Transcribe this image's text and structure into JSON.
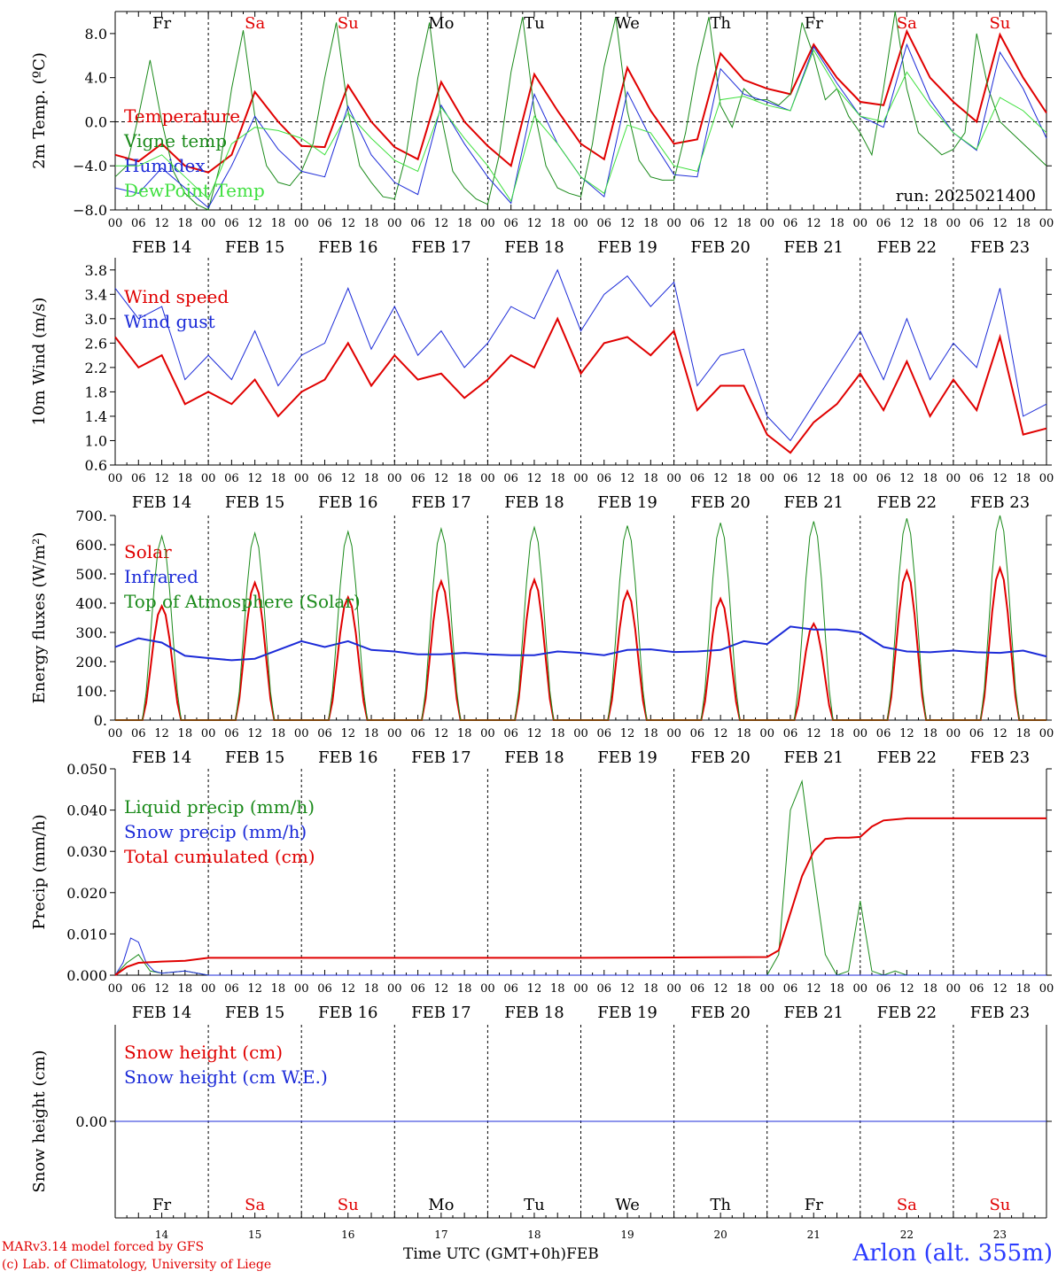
{
  "credits": {
    "model": "MARv3.14 model forced by GFS",
    "lab": "(c) Lab. of Climatology, University of Liege"
  },
  "x_axis": {
    "title": "Time UTC (GMT+0h)",
    "month": "FEB",
    "hour_ticks": [
      "00",
      "06",
      "12",
      "18"
    ],
    "date_labels": [
      "FEB 14",
      "FEB 15",
      "FEB 16",
      "FEB 17",
      "FEB 18",
      "FEB 19",
      "FEB 20",
      "FEB 21",
      "FEB 22",
      "FEB 23"
    ],
    "weekdays": [
      "Fr",
      "Sa",
      "Su",
      "Mo",
      "Tu",
      "We",
      "Th",
      "Fr",
      "Sa",
      "Su"
    ],
    "weekday_colors": [
      "#000000",
      "#e00000",
      "#e00000",
      "#000000",
      "#000000",
      "#000000",
      "#000000",
      "#000000",
      "#e00000",
      "#e00000"
    ],
    "day_numbers": [
      "14",
      "15",
      "16",
      "17",
      "18",
      "19",
      "20",
      "21",
      "22",
      "23"
    ]
  },
  "station": "Arlon (alt. 355m)",
  "chart_data": [
    {
      "type": "line",
      "ylabel": "2m Temp. (ºC)",
      "ylim": [
        -8,
        10
      ],
      "yticks": [
        "8.0",
        "4.0",
        "0.0",
        "−4.0",
        "−8.0"
      ],
      "ytick_values": [
        8,
        4,
        0,
        -4,
        -8
      ],
      "xlim_hours": [
        0,
        240
      ],
      "run_label": "run: 2025021400",
      "weekday_labels_in_plot": true,
      "series": [
        {
          "name": "Temperature",
          "color": "#e00000",
          "width": 2,
          "x": [
            0,
            6,
            12,
            18,
            24,
            30,
            36,
            42,
            48,
            54,
            60,
            66,
            72,
            78,
            84,
            90,
            96,
            102,
            108,
            114,
            120,
            126,
            132,
            138,
            144,
            150,
            156,
            162,
            168,
            174,
            180,
            186,
            192,
            198,
            204,
            210,
            216,
            222,
            228,
            234,
            240
          ],
          "y": [
            -3.0,
            -3.6,
            -2.0,
            -4.0,
            -4.6,
            -3.0,
            2.7,
            0.0,
            -2.2,
            -2.3,
            3.3,
            0.0,
            -2.3,
            -3.4,
            3.6,
            0.0,
            -2.2,
            -4.0,
            4.3,
            1.0,
            -2.0,
            -3.4,
            4.9,
            1.0,
            -2.0,
            -1.6,
            6.2,
            3.8,
            3.0,
            2.5,
            7.0,
            4.0,
            1.8,
            1.5,
            8.2,
            4.0,
            1.8,
            0.0,
            7.9,
            4.0,
            0.8
          ]
        },
        {
          "name": "Vigne temp",
          "color": "#1a8a1a",
          "width": 1,
          "x": [
            0,
            3,
            6,
            9,
            12,
            15,
            18,
            21,
            24,
            27,
            30,
            33,
            36,
            39,
            42,
            45,
            48,
            51,
            54,
            57,
            60,
            63,
            66,
            69,
            72,
            75,
            78,
            81,
            84,
            87,
            90,
            93,
            96,
            99,
            102,
            105,
            108,
            111,
            114,
            117,
            120,
            123,
            126,
            129,
            132,
            135,
            138,
            141,
            144,
            147,
            150,
            153,
            156,
            159,
            162,
            165,
            168,
            171,
            174,
            177,
            180,
            183,
            186,
            189,
            192,
            195,
            198,
            201,
            204,
            207,
            210,
            213,
            216,
            219,
            222,
            225,
            228,
            231,
            234,
            237,
            240
          ],
          "y": [
            -5.0,
            -4.0,
            0.5,
            5.6,
            0.0,
            -4.5,
            -6.5,
            -7.5,
            -8.0,
            -4.0,
            3.0,
            8.3,
            0.5,
            -4.0,
            -5.5,
            -5.8,
            -4.5,
            -2.0,
            4.0,
            9.0,
            1.0,
            -4.0,
            -5.5,
            -6.8,
            -7.0,
            -3.0,
            4.0,
            9.0,
            0.5,
            -4.5,
            -6.0,
            -7.0,
            -7.5,
            -3.0,
            4.5,
            9.5,
            1.0,
            -4.0,
            -6.0,
            -6.5,
            -6.8,
            -2.0,
            5.0,
            9.5,
            1.0,
            -3.5,
            -5.0,
            -5.3,
            -5.3,
            -1.0,
            5.0,
            9.5,
            1.5,
            -0.5,
            3.0,
            2.0,
            2.0,
            1.5,
            2.5,
            9.0,
            6.0,
            2.0,
            3.0,
            0.5,
            -1.0,
            -3.0,
            3.0,
            10.0,
            3.0,
            -1.0,
            -2.0,
            -3.0,
            -2.5,
            -1.0,
            8.0,
            3.0,
            0.0,
            -1.0,
            -2.0,
            -3.0,
            -4.0
          ]
        },
        {
          "name": "Humidex",
          "color": "#1c2bd8",
          "width": 1,
          "x": [
            0,
            6,
            12,
            18,
            24,
            30,
            36,
            42,
            48,
            54,
            60,
            66,
            72,
            78,
            84,
            90,
            96,
            102,
            108,
            114,
            120,
            126,
            132,
            138,
            144,
            150,
            156,
            162,
            168,
            174,
            180,
            186,
            192,
            198,
            204,
            210,
            216,
            222,
            228,
            234,
            240
          ],
          "y": [
            -6.0,
            -6.5,
            -4.2,
            -6.0,
            -7.8,
            -4.0,
            0.5,
            -2.5,
            -4.5,
            -5.0,
            1.4,
            -3.0,
            -5.5,
            -6.6,
            1.5,
            -2.0,
            -5.0,
            -7.4,
            2.5,
            -2.0,
            -5.0,
            -6.8,
            2.7,
            -1.5,
            -4.8,
            -5.0,
            4.8,
            2.5,
            1.8,
            1.0,
            6.8,
            3.5,
            0.5,
            -0.5,
            7.0,
            2.0,
            -1.0,
            -2.6,
            6.3,
            3.0,
            -1.5
          ]
        },
        {
          "name": "DewPoint Temp",
          "color": "#3fe03f",
          "width": 1,
          "x": [
            0,
            6,
            12,
            18,
            24,
            30,
            36,
            42,
            48,
            54,
            60,
            66,
            72,
            78,
            84,
            90,
            96,
            102,
            108,
            114,
            120,
            126,
            132,
            138,
            144,
            150,
            156,
            162,
            168,
            174,
            180,
            186,
            192,
            198,
            204,
            210,
            216,
            222,
            228,
            234,
            240
          ],
          "y": [
            -4.0,
            -4.0,
            -3.0,
            -5.0,
            -7.0,
            -2.0,
            -0.5,
            -0.8,
            -1.5,
            -3.0,
            0.8,
            -1.5,
            -3.5,
            -4.5,
            1.3,
            -1.5,
            -4.0,
            -7.2,
            0.5,
            -2.0,
            -5.0,
            -6.5,
            -0.3,
            -1.0,
            -4.0,
            -4.5,
            2.0,
            2.3,
            1.5,
            1.0,
            6.5,
            3.0,
            0.5,
            0.0,
            4.5,
            1.5,
            -1.0,
            -2.5,
            2.2,
            1.0,
            -1.0
          ]
        }
      ]
    },
    {
      "type": "line",
      "ylabel": "10m Wind (m/s)",
      "ylim": [
        0.6,
        4.0
      ],
      "yticks": [
        "3.8",
        "3.4",
        "3.0",
        "2.6",
        "2.2",
        "1.8",
        "1.4",
        "1.0",
        "0.6"
      ],
      "ytick_values": [
        3.8,
        3.4,
        3.0,
        2.6,
        2.2,
        1.8,
        1.4,
        1.0,
        0.6
      ],
      "xlim_hours": [
        0,
        240
      ],
      "series": [
        {
          "name": "Wind speed",
          "color": "#e00000",
          "width": 2,
          "x": [
            0,
            6,
            12,
            18,
            24,
            30,
            36,
            42,
            48,
            54,
            60,
            66,
            72,
            78,
            84,
            90,
            96,
            102,
            108,
            114,
            120,
            126,
            132,
            138,
            144,
            150,
            156,
            162,
            168,
            174,
            180,
            186,
            192,
            198,
            204,
            210,
            216,
            222,
            228,
            234,
            240
          ],
          "y": [
            2.7,
            2.2,
            2.4,
            1.6,
            1.8,
            1.6,
            2.0,
            1.4,
            1.8,
            2.0,
            2.6,
            1.9,
            2.4,
            2.0,
            2.1,
            1.7,
            2.0,
            2.4,
            2.2,
            3.0,
            2.1,
            2.6,
            2.7,
            2.4,
            2.8,
            1.5,
            1.9,
            1.9,
            1.1,
            0.8,
            1.3,
            1.6,
            2.1,
            1.5,
            2.3,
            1.4,
            2.0,
            1.5,
            2.7,
            1.1,
            1.2
          ]
        },
        {
          "name": "Wind gust",
          "color": "#1c2bd8",
          "width": 1,
          "x": [
            0,
            6,
            12,
            18,
            24,
            30,
            36,
            42,
            48,
            54,
            60,
            66,
            72,
            78,
            84,
            90,
            96,
            102,
            108,
            114,
            120,
            126,
            132,
            138,
            144,
            150,
            156,
            162,
            168,
            174,
            180,
            186,
            192,
            198,
            204,
            210,
            216,
            222,
            228,
            234,
            240
          ],
          "y": [
            3.5,
            3.0,
            3.2,
            2.0,
            2.4,
            2.0,
            2.8,
            1.9,
            2.4,
            2.6,
            3.5,
            2.5,
            3.2,
            2.4,
            2.8,
            2.2,
            2.6,
            3.2,
            3.0,
            3.8,
            2.8,
            3.4,
            3.7,
            3.2,
            3.6,
            1.9,
            2.4,
            2.5,
            1.4,
            1.0,
            1.6,
            2.2,
            2.8,
            2.0,
            3.0,
            2.0,
            2.6,
            2.2,
            3.5,
            1.4,
            1.6
          ]
        }
      ]
    },
    {
      "type": "line",
      "ylabel": "Energy fluxes (W/m²)",
      "ylim": [
        0,
        700
      ],
      "yticks": [
        "700.",
        "600.",
        "500.",
        "400.",
        "300.",
        "200.",
        "100.",
        "0."
      ],
      "ytick_values": [
        700,
        600,
        500,
        400,
        300,
        200,
        100,
        0
      ],
      "xlim_hours": [
        0,
        240
      ],
      "series": [
        {
          "name": "Solar",
          "color": "#e00000",
          "width": 2,
          "kind": "diurnal",
          "peaks": [
            390,
            470,
            420,
            475,
            480,
            440,
            415,
            330,
            510,
            520
          ]
        },
        {
          "name": "Infrared",
          "color": "#1c2bd8",
          "width": 2,
          "x": [
            0,
            6,
            12,
            18,
            24,
            30,
            36,
            42,
            48,
            54,
            60,
            66,
            72,
            78,
            84,
            90,
            96,
            102,
            108,
            114,
            120,
            126,
            132,
            138,
            144,
            150,
            156,
            162,
            168,
            174,
            180,
            186,
            192,
            198,
            204,
            210,
            216,
            222,
            228,
            234,
            240
          ],
          "y": [
            250,
            280,
            265,
            220,
            212,
            205,
            210,
            240,
            270,
            250,
            270,
            240,
            235,
            225,
            225,
            230,
            225,
            222,
            222,
            235,
            230,
            222,
            240,
            242,
            233,
            235,
            240,
            270,
            260,
            320,
            310,
            310,
            300,
            250,
            235,
            232,
            238,
            232,
            230,
            238,
            218
          ]
        },
        {
          "name": "Top of Atmosphere (Solar)",
          "color": "#1a8a1a",
          "width": 1,
          "kind": "diurnal",
          "peaks": [
            630,
            640,
            645,
            655,
            660,
            665,
            675,
            680,
            690,
            700
          ]
        }
      ]
    },
    {
      "type": "line",
      "ylabel": "Precip (mm/h)",
      "ylim": [
        0,
        0.05
      ],
      "yticks": [
        "0.050",
        "0.040",
        "0.030",
        "0.020",
        "0.010",
        "0.000"
      ],
      "ytick_values": [
        0.05,
        0.04,
        0.03,
        0.02,
        0.01,
        0
      ],
      "xlim_hours": [
        0,
        240
      ],
      "series": [
        {
          "name": "Liquid precip (mm/h)",
          "color": "#1a8a1a",
          "width": 1,
          "x": [
            0,
            3,
            6,
            9,
            12,
            18,
            24,
            168,
            171,
            174,
            177,
            180,
            183,
            186,
            189,
            192,
            195,
            198,
            201,
            204,
            207,
            210,
            240
          ],
          "y": [
            0,
            0.003,
            0.005,
            0.001,
            0.0005,
            0.001,
            0,
            0,
            0.005,
            0.04,
            0.047,
            0.025,
            0.005,
            0,
            0.001,
            0.018,
            0.001,
            0,
            0.001,
            0,
            0,
            0,
            0
          ]
        },
        {
          "name": "Snow precip (mm/h)",
          "color": "#1c2bd8",
          "width": 1,
          "x": [
            0,
            2,
            4,
            6,
            8,
            10,
            12,
            18,
            24,
            240
          ],
          "y": [
            0,
            0.003,
            0.009,
            0.008,
            0.003,
            0.001,
            0.0005,
            0.001,
            0,
            0
          ]
        },
        {
          "name": "Total cumulated (cm)",
          "color": "#e00000",
          "width": 2,
          "x": [
            0,
            3,
            6,
            12,
            18,
            24,
            30,
            60,
            120,
            168,
            171,
            174,
            177,
            180,
            183,
            186,
            189,
            192,
            195,
            198,
            204,
            240
          ],
          "y": [
            0,
            0.002,
            0.003,
            0.0033,
            0.0035,
            0.0042,
            0.0042,
            0.0042,
            0.0042,
            0.0044,
            0.006,
            0.015,
            0.024,
            0.03,
            0.033,
            0.0333,
            0.0333,
            0.0335,
            0.036,
            0.0375,
            0.038,
            0.038
          ]
        }
      ]
    },
    {
      "type": "line",
      "ylabel": "Snow height (cm)",
      "ylim": [
        -1,
        1
      ],
      "yticks": [
        "0.00"
      ],
      "ytick_values": [
        0
      ],
      "xlim_hours": [
        0,
        240
      ],
      "series": [
        {
          "name": "Snow height (cm)",
          "color": "#e00000",
          "width": 1,
          "x": [
            0,
            240
          ],
          "y": [
            0,
            0
          ]
        },
        {
          "name": "Snow height (cm W.E.)",
          "color": "#1c2bd8",
          "width": 1,
          "x": [
            0,
            240
          ],
          "y": [
            0,
            0
          ]
        }
      ]
    }
  ]
}
